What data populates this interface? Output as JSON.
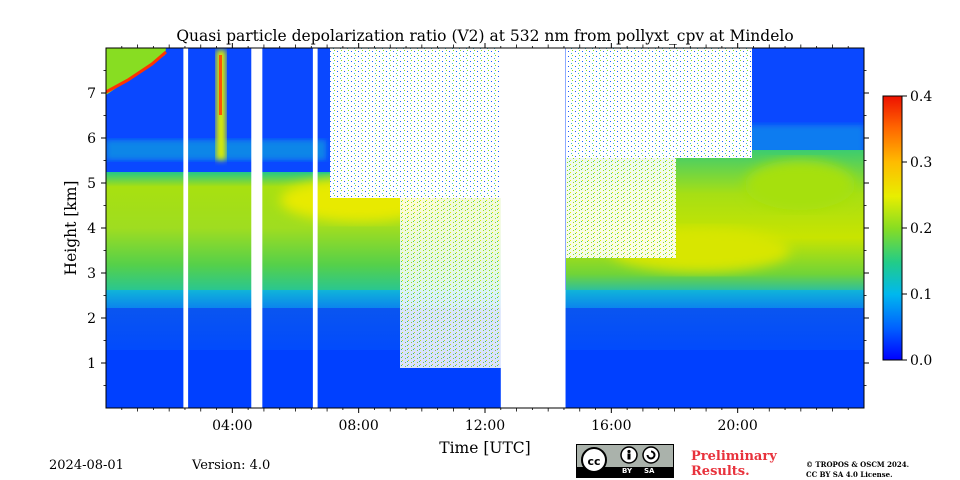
{
  "chart_data": {
    "type": "heatmap",
    "title": "Quasi particle depolarization ratio (V2) at 532 nm from pollyxt_cpv at Mindelo",
    "xlabel": "Time [UTC]",
    "ylabel": "Height [km]",
    "xlim": [
      0,
      24
    ],
    "ylim": [
      0,
      8
    ],
    "x_ticks": [
      4,
      8,
      12,
      16,
      20
    ],
    "x_tick_labels": [
      "04:00",
      "08:00",
      "12:00",
      "16:00",
      "20:00"
    ],
    "y_ticks": [
      1,
      2,
      3,
      4,
      5,
      6,
      7
    ],
    "y_tick_labels": [
      "1",
      "2",
      "3",
      "4",
      "5",
      "6",
      "7"
    ],
    "colorbar": {
      "range": [
        0.0,
        0.4
      ],
      "ticks": [
        0.0,
        0.1,
        0.2,
        0.3,
        0.4
      ],
      "tick_labels": [
        "0.0",
        "0.1",
        "0.2",
        "0.3",
        "0.4"
      ],
      "colormap": "jet"
    },
    "no_data_intervals_utc": [
      [
        2.45,
        2.6
      ],
      [
        4.6,
        4.95
      ],
      [
        6.55,
        6.7
      ],
      [
        12.5,
        14.55
      ]
    ],
    "layers": [
      {
        "name": "boundary-layer",
        "height_km": [
          0,
          2.1
        ],
        "value": 0.03
      },
      {
        "name": "transition",
        "height_km": [
          2.1,
          2.6
        ],
        "value": 0.09
      },
      {
        "name": "dust-layer",
        "height_km": [
          2.6,
          5.0
        ],
        "value": 0.19
      },
      {
        "name": "dust-layer-peak",
        "time_utc": [
          6,
          10
        ],
        "height_km": [
          3.8,
          5.0
        ],
        "value": 0.27
      },
      {
        "name": "upper-free-troposphere",
        "height_km": [
          5.2,
          8.0
        ],
        "value": 0.02
      }
    ]
  },
  "footer": {
    "date": "2024-08-01",
    "version": "Version: 4.0",
    "preliminary_line1": "Preliminary",
    "preliminary_line2": "Results.",
    "copyright_line1": "© TROPOS & OSCM 2024.",
    "copyright_line2": "CC BY SA 4.0 License.",
    "license_badge": {
      "left": "BY",
      "right": "SA"
    }
  },
  "colors": {
    "cb0": "#0000aa",
    "cb1": "#0000ff",
    "cb2": "#0080ff",
    "cb3": "#00ccee",
    "cb4": "#33cc66",
    "cb5": "#8fdd1f",
    "cb6": "#ffee00",
    "cb7": "#ff8800",
    "cb8": "#ee2200"
  }
}
